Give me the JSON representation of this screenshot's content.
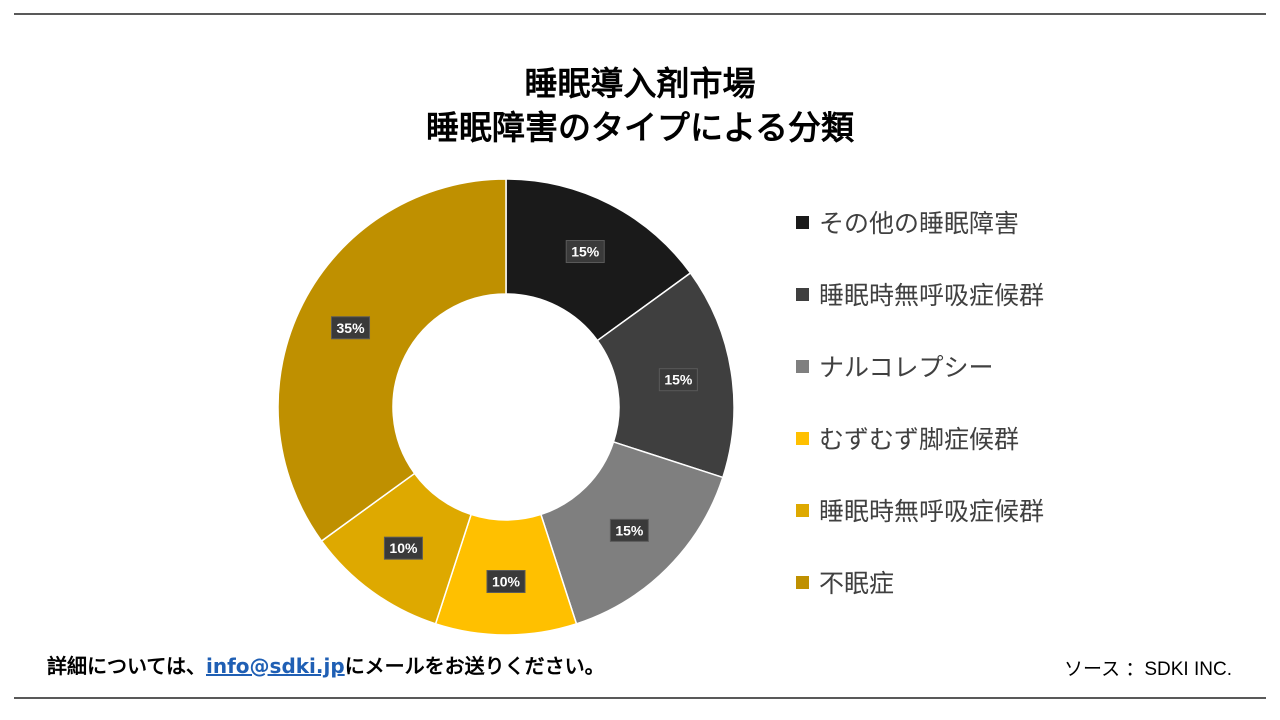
{
  "chart_data": {
    "type": "donut",
    "title_line1": "睡眠導入剤市場",
    "title_line2": "睡眠障害のタイプによる分類",
    "slices": [
      {
        "name": "その他の睡眠障害",
        "value": 15,
        "label": "15%",
        "color": "#1a1a1a"
      },
      {
        "name": "睡眠時無呼吸症候群",
        "value": 15,
        "label": "15%",
        "color": "#3f3f3f"
      },
      {
        "name": "ナルコレプシー",
        "value": 15,
        "label": "15%",
        "color": "#7f7f7f"
      },
      {
        "name": "むずむず脚症候群",
        "value": 10,
        "label": "10%",
        "color": "#ffc000"
      },
      {
        "name": "睡眠時無呼吸症候群",
        "value": 10,
        "label": "10%",
        "color": "#dea900"
      },
      {
        "name": "不眠症",
        "value": 35,
        "label": "35%",
        "color": "#bf9000"
      }
    ],
    "legend_position": "right"
  },
  "footer": {
    "contact_prefix": "詳細については、",
    "contact_email": "info@sdki.jp",
    "contact_suffix": "にメールをお送りください。",
    "source": "ソース ：SDKI INC."
  }
}
